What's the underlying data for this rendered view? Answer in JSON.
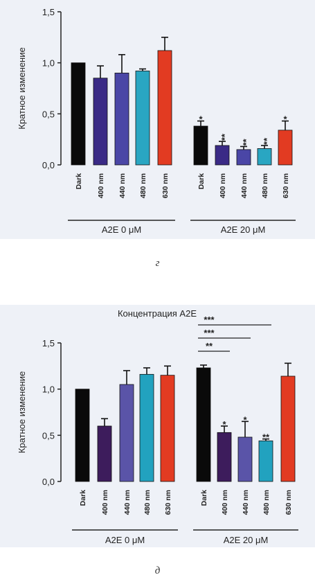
{
  "chart_data": [
    {
      "type": "bar",
      "panel": "г",
      "title": "",
      "ylabel": "Кратное изменение",
      "ylim": [
        0,
        1.5
      ],
      "yticks": [
        "0,0",
        "0,5",
        "1,0",
        "1,5"
      ],
      "groups": [
        {
          "label": "A2E 0 μM",
          "bars": [
            {
              "category": "Dark",
              "value": 1.0,
              "error": 0.0,
              "sig": "",
              "color": "#0a0a0a"
            },
            {
              "category": "400 nm",
              "value": 0.85,
              "error": 0.12,
              "sig": "",
              "color": "#3a2a86"
            },
            {
              "category": "440 nm",
              "value": 0.9,
              "error": 0.18,
              "sig": "",
              "color": "#4a46a6"
            },
            {
              "category": "480 nm",
              "value": 0.92,
              "error": 0.02,
              "sig": "",
              "color": "#29a6c2"
            },
            {
              "category": "630 nm",
              "value": 1.12,
              "error": 0.13,
              "sig": "",
              "color": "#e23b22"
            }
          ]
        },
        {
          "label": "A2E 20 μM",
          "bars": [
            {
              "category": "Dark",
              "value": 0.38,
              "error": 0.05,
              "sig": "*",
              "color": "#0a0a0a"
            },
            {
              "category": "400 nm",
              "value": 0.19,
              "error": 0.04,
              "sig": "**",
              "color": "#3a2a86"
            },
            {
              "category": "440 nm",
              "value": 0.15,
              "error": 0.03,
              "sig": "**",
              "color": "#4a46a6"
            },
            {
              "category": "480 nm",
              "value": 0.16,
              "error": 0.03,
              "sig": "**",
              "color": "#29a6c2"
            },
            {
              "category": "630 nm",
              "value": 0.34,
              "error": 0.09,
              "sig": "*",
              "color": "#e23b22"
            }
          ]
        }
      ],
      "brackets": []
    },
    {
      "type": "bar",
      "panel": "д",
      "title": "Концентрация A2E",
      "ylabel": "Кратное изменение",
      "ylim": [
        0,
        1.5
      ],
      "yticks": [
        "0,0",
        "0,5",
        "1,0",
        "1,5"
      ],
      "groups": [
        {
          "label": "A2E 0 μM",
          "bars": [
            {
              "category": "Dark",
              "value": 1.0,
              "error": 0.0,
              "sig": "",
              "color": "#0a0a0a"
            },
            {
              "category": "400 nm",
              "value": 0.6,
              "error": 0.08,
              "sig": "",
              "color": "#3d1c5c"
            },
            {
              "category": "440 nm",
              "value": 1.05,
              "error": 0.15,
              "sig": "",
              "color": "#5a54a8"
            },
            {
              "category": "480 nm",
              "value": 1.16,
              "error": 0.07,
              "sig": "",
              "color": "#22a2bf"
            },
            {
              "category": "630 nm",
              "value": 1.15,
              "error": 0.1,
              "sig": "",
              "color": "#e23b22"
            }
          ]
        },
        {
          "label": "A2E 20 μM",
          "bars": [
            {
              "category": "Dark",
              "value": 1.23,
              "error": 0.03,
              "sig": "",
              "color": "#0a0a0a"
            },
            {
              "category": "400 nm",
              "value": 0.53,
              "error": 0.07,
              "sig": "*",
              "color": "#3d1c5c"
            },
            {
              "category": "440 nm",
              "value": 0.48,
              "error": 0.17,
              "sig": "*",
              "color": "#5a54a8"
            },
            {
              "category": "480 nm",
              "value": 0.44,
              "error": 0.02,
              "sig": "**",
              "color": "#22a2bf"
            },
            {
              "category": "630 nm",
              "value": 1.14,
              "error": 0.14,
              "sig": "",
              "color": "#e23b22"
            }
          ]
        }
      ],
      "brackets": [
        {
          "from": 0,
          "to": 1,
          "label": "**"
        },
        {
          "from": 0,
          "to": 2,
          "label": "***"
        },
        {
          "from": 0,
          "to": 3,
          "label": "***"
        }
      ]
    }
  ],
  "panel_letters": {
    "top": "г",
    "bottom": "д"
  }
}
